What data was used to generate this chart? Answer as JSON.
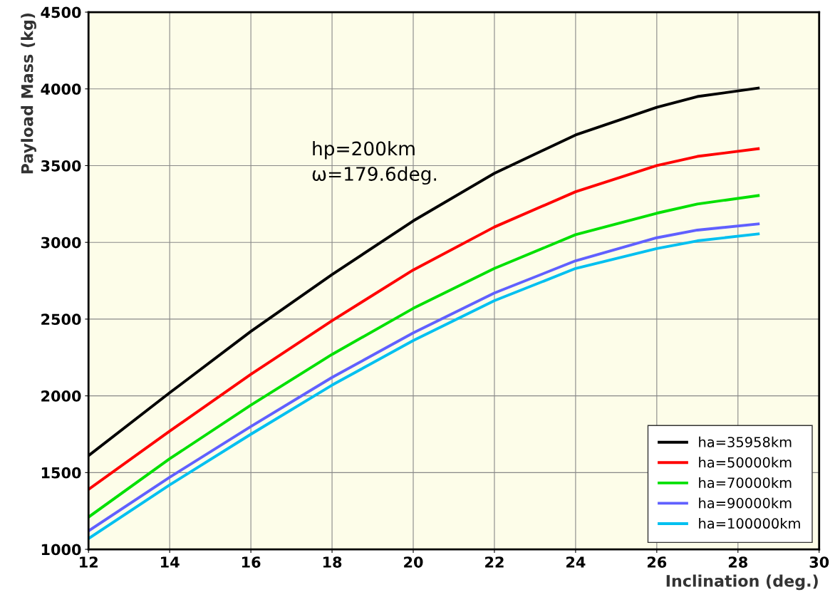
{
  "chart_data": {
    "type": "line",
    "xlabel": "Inclination (deg.)",
    "ylabel": "Payload Mass (kg)",
    "x": [
      12,
      14,
      16,
      18,
      20,
      22,
      24,
      26,
      27,
      28.5
    ],
    "series": [
      {
        "name": "ha=35958km",
        "color": "#000000",
        "values": [
          1610,
          2020,
          2420,
          2790,
          3140,
          3450,
          3700,
          3880,
          3950,
          4005
        ]
      },
      {
        "name": "ha=50000km",
        "color": "#ff0000",
        "values": [
          1390,
          1770,
          2140,
          2490,
          2820,
          3100,
          3330,
          3500,
          3560,
          3610
        ]
      },
      {
        "name": "ha=70000km",
        "color": "#00e000",
        "values": [
          1210,
          1590,
          1940,
          2270,
          2570,
          2830,
          3050,
          3190,
          3250,
          3305
        ]
      },
      {
        "name": "ha=90000km",
        "color": "#6060ff",
        "values": [
          1120,
          1470,
          1800,
          2120,
          2410,
          2670,
          2880,
          3030,
          3080,
          3120
        ]
      },
      {
        "name": "ha=100000km",
        "color": "#00c0f0",
        "values": [
          1070,
          1420,
          1750,
          2070,
          2360,
          2620,
          2830,
          2960,
          3010,
          3055
        ]
      }
    ],
    "xlim": [
      12,
      30
    ],
    "xticks": [
      12,
      14,
      16,
      18,
      20,
      22,
      24,
      26,
      28,
      30
    ],
    "ylim": [
      1000,
      4500
    ],
    "yticks": [
      1000,
      1500,
      2000,
      2500,
      3000,
      3500,
      4000,
      4500
    ],
    "grid": true,
    "legend": "bottom right",
    "marker": "none",
    "line_style": "solid",
    "annotations": [
      "hp=200km\nω=179.6deg."
    ]
  }
}
